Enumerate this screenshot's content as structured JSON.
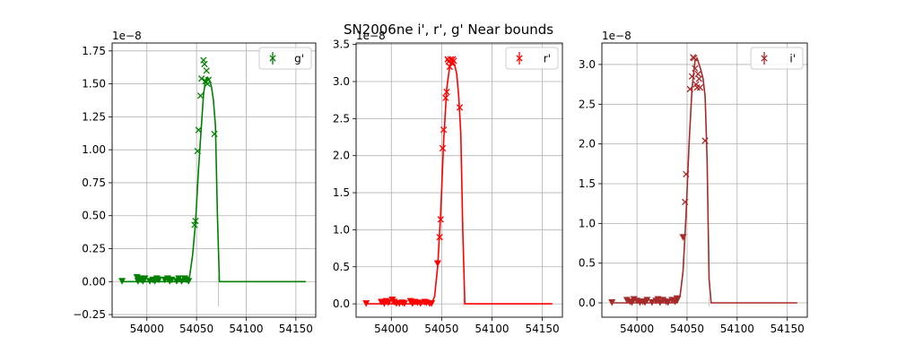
{
  "figure": {
    "suptitle": "SN2006ne  i', r', g' Near bounds"
  },
  "chart_data": [
    {
      "type": "scatter",
      "band": "g'",
      "color": "#008000",
      "xlim": [
        53965,
        54170
      ],
      "ylim": [
        -0.27,
        1.81
      ],
      "offset_label": "1e−8",
      "xticks": [
        54000,
        54050,
        54100,
        54150
      ],
      "yticks": [
        -0.25,
        0.0,
        0.25,
        0.5,
        0.75,
        1.0,
        1.25,
        1.5,
        1.75
      ],
      "ytick_labels": [
        "−0.25",
        "0.00",
        "0.25",
        "0.50",
        "0.75",
        "1.00",
        "1.25",
        "1.50",
        "1.75"
      ],
      "grid": true,
      "legend": {
        "label": "g'",
        "position": "top-right"
      },
      "vline_x": 54072,
      "model_line": [
        [
          53975,
          0
        ],
        [
          54040,
          0.0
        ],
        [
          54043,
          0.04
        ],
        [
          54046,
          0.2
        ],
        [
          54049,
          0.45
        ],
        [
          54052,
          0.85
        ],
        [
          54055,
          1.2
        ],
        [
          54057,
          1.42
        ],
        [
          54059,
          1.53
        ],
        [
          54061,
          1.55
        ],
        [
          54063,
          1.53
        ],
        [
          54065,
          1.48
        ],
        [
          54067,
          1.38
        ],
        [
          54069,
          1.18
        ],
        [
          54071,
          0.5
        ],
        [
          54073,
          0.0
        ],
        [
          54160,
          0.0
        ]
      ],
      "points": [
        [
          54048,
          0.43
        ],
        [
          54049,
          0.46
        ],
        [
          54051,
          0.99
        ],
        [
          54052,
          1.15
        ],
        [
          54054,
          1.41
        ],
        [
          54055,
          1.54
        ],
        [
          54057,
          1.68
        ],
        [
          54058,
          1.65
        ],
        [
          54059,
          1.52
        ],
        [
          54060,
          1.6
        ],
        [
          54061,
          1.5
        ],
        [
          54062,
          1.53
        ],
        [
          54068,
          1.12
        ]
      ],
      "upper_limits": [
        [
          53975,
          0.0
        ],
        [
          53990,
          0.03
        ],
        [
          53991,
          0.0
        ],
        [
          53993,
          0.02
        ],
        [
          53994,
          0.01
        ],
        [
          53996,
          0.0
        ],
        [
          53998,
          0.02
        ],
        [
          54003,
          0.0
        ],
        [
          54006,
          0.01
        ],
        [
          54008,
          0.0
        ],
        [
          54010,
          0.02
        ],
        [
          54012,
          0.01
        ],
        [
          54018,
          0.01
        ],
        [
          54021,
          0.02
        ],
        [
          54023,
          0.0
        ],
        [
          54025,
          0.01
        ],
        [
          54030,
          0.0
        ],
        [
          54032,
          0.02
        ],
        [
          54035,
          0.0
        ],
        [
          54038,
          0.02
        ],
        [
          54040,
          0.01
        ],
        [
          54042,
          0.0
        ]
      ]
    },
    {
      "type": "scatter",
      "band": "r'",
      "color": "#ff0000",
      "xlim": [
        53965,
        54170
      ],
      "ylim": [
        -0.18,
        3.52
      ],
      "offset_label": "1e−8",
      "xticks": [
        54000,
        54050,
        54100,
        54150
      ],
      "yticks": [
        0.0,
        0.5,
        1.0,
        1.5,
        2.0,
        2.5,
        3.0,
        3.5
      ],
      "ytick_labels": [
        "0.0",
        "0.5",
        "1.0",
        "1.5",
        "2.0",
        "2.5",
        "3.0",
        "3.5"
      ],
      "grid": true,
      "legend": {
        "label": "r'",
        "position": "top-right"
      },
      "vline_x": 54072,
      "model_line": [
        [
          53975,
          0
        ],
        [
          54040,
          0.0
        ],
        [
          54043,
          0.1
        ],
        [
          54046,
          0.5
        ],
        [
          54049,
          1.2
        ],
        [
          54052,
          2.2
        ],
        [
          54055,
          2.9
        ],
        [
          54058,
          3.2
        ],
        [
          54061,
          3.27
        ],
        [
          54063,
          3.22
        ],
        [
          54065,
          3.1
        ],
        [
          54067,
          2.8
        ],
        [
          54069,
          2.3
        ],
        [
          54071,
          1.0
        ],
        [
          54073,
          0.0
        ],
        [
          54160,
          0.0
        ]
      ],
      "points": [
        [
          54048,
          0.9
        ],
        [
          54049,
          1.14
        ],
        [
          54051,
          2.1
        ],
        [
          54052,
          2.35
        ],
        [
          54054,
          2.78
        ],
        [
          54055,
          2.86
        ],
        [
          54056,
          3.3
        ],
        [
          54057,
          3.27
        ],
        [
          54058,
          3.2
        ],
        [
          54059,
          3.3
        ],
        [
          54060,
          3.25
        ],
        [
          54061,
          3.3
        ],
        [
          54062,
          3.28
        ],
        [
          54068,
          2.65
        ]
      ],
      "upper_limits": [
        [
          53975,
          0.0
        ],
        [
          53990,
          0.02
        ],
        [
          53993,
          0.0
        ],
        [
          53995,
          0.03
        ],
        [
          53997,
          0.01
        ],
        [
          54001,
          0.05
        ],
        [
          54003,
          0.02
        ],
        [
          54005,
          0.0
        ],
        [
          54008,
          0.0
        ],
        [
          54011,
          0.01
        ],
        [
          54013,
          0.0
        ],
        [
          54019,
          0.03
        ],
        [
          54021,
          0.0
        ],
        [
          54023,
          0.02
        ],
        [
          54026,
          0.01
        ],
        [
          54029,
          0.0
        ],
        [
          54033,
          0.02
        ],
        [
          54035,
          0.01
        ],
        [
          54038,
          0.0
        ],
        [
          54040,
          0.0
        ],
        [
          54046,
          0.54
        ]
      ]
    },
    {
      "type": "scatter",
      "band": "i'",
      "color": "#a52a2a",
      "xlim": [
        53965,
        54170
      ],
      "ylim": [
        -0.18,
        3.27
      ],
      "offset_label": "1e−8",
      "xticks": [
        54000,
        54050,
        54100,
        54150
      ],
      "yticks": [
        0.0,
        0.5,
        1.0,
        1.5,
        2.0,
        2.5,
        3.0
      ],
      "ytick_labels": [
        "0.0",
        "0.5",
        "1.0",
        "1.5",
        "2.0",
        "2.5",
        "3.0"
      ],
      "grid": true,
      "legend": {
        "label": "i'",
        "position": "top-right"
      },
      "vline_x": 54072,
      "model_line": [
        [
          53975,
          0
        ],
        [
          54040,
          0.0
        ],
        [
          54043,
          0.08
        ],
        [
          54046,
          0.4
        ],
        [
          54049,
          1.1
        ],
        [
          54052,
          2.0
        ],
        [
          54055,
          2.7
        ],
        [
          54058,
          3.05
        ],
        [
          54060,
          3.08
        ],
        [
          54062,
          3.0
        ],
        [
          54064,
          2.92
        ],
        [
          54066,
          2.82
        ],
        [
          54068,
          2.6
        ],
        [
          54070,
          1.8
        ],
        [
          54072,
          0.3
        ],
        [
          54074,
          0.0
        ],
        [
          54160,
          0.0
        ]
      ],
      "points": [
        [
          54048,
          1.27
        ],
        [
          54049,
          1.62
        ],
        [
          54053,
          2.69
        ],
        [
          54055,
          2.85
        ],
        [
          54056,
          3.09
        ],
        [
          54057,
          3.08
        ],
        [
          54058,
          2.95
        ],
        [
          54059,
          2.75
        ],
        [
          54060,
          2.71
        ],
        [
          54061,
          2.88
        ],
        [
          54062,
          2.82
        ],
        [
          54063,
          2.71
        ],
        [
          54068,
          2.04
        ]
      ],
      "upper_limits": [
        [
          53975,
          0.0
        ],
        [
          53990,
          0.03
        ],
        [
          53993,
          0.01
        ],
        [
          53995,
          0.0
        ],
        [
          53997,
          0.04
        ],
        [
          54000,
          0.02
        ],
        [
          54003,
          0.0
        ],
        [
          54006,
          0.01
        ],
        [
          54008,
          0.0
        ],
        [
          54010,
          0.03
        ],
        [
          54015,
          0.0
        ],
        [
          54019,
          0.02
        ],
        [
          54021,
          0.04
        ],
        [
          54023,
          0.0
        ],
        [
          54026,
          0.03
        ],
        [
          54029,
          0.01
        ],
        [
          54031,
          0.0
        ],
        [
          54035,
          0.03
        ],
        [
          54038,
          0.01
        ],
        [
          54040,
          0.05
        ],
        [
          54046,
          0.82
        ]
      ]
    }
  ]
}
